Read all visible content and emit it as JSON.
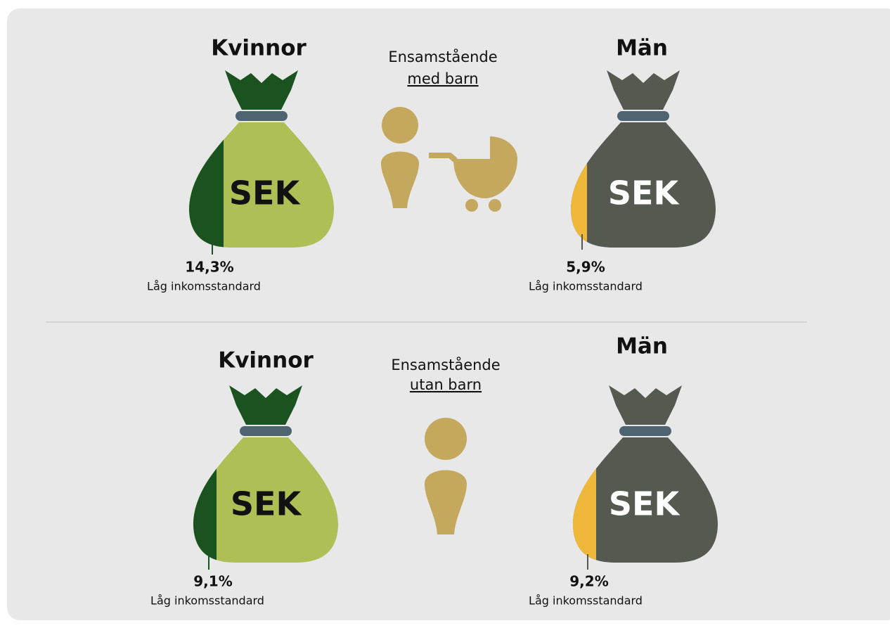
{
  "sections": [
    {
      "heading": "Ensamstående",
      "subheading": "med barn",
      "groups": [
        {
          "title": "Kvinnor",
          "bag_label": "SEK",
          "value": "14,3%",
          "caption": "Låg inkomsstandard"
        },
        {
          "title": "Män",
          "bag_label": "SEK",
          "value": "5,9%",
          "caption": "Låg inkomsstandard"
        }
      ]
    },
    {
      "heading": "Ensamstående",
      "subheading": "utan barn",
      "groups": [
        {
          "title": "Kvinnor",
          "bag_label": "SEK",
          "value": "9,1%",
          "caption": "Låg inkomsstandard"
        },
        {
          "title": "Män",
          "bag_label": "SEK",
          "value": "9,2%",
          "caption": "Låg inkomsstandard"
        }
      ]
    }
  ]
}
